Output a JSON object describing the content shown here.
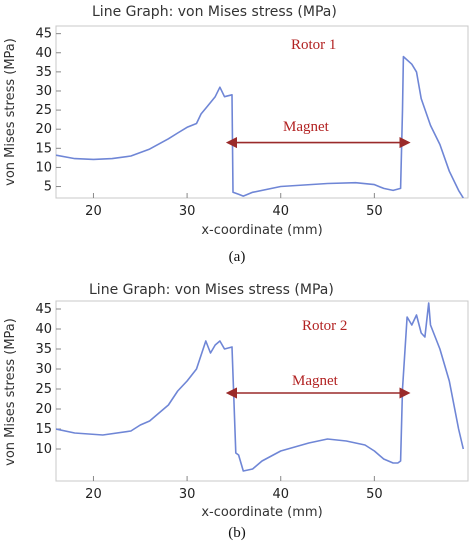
{
  "chart_data": [
    {
      "type": "line",
      "title": "Line Graph: von Mises stress (MPa)",
      "xlabel": "x-coordinate (mm)",
      "ylabel": "von Mises stress (MPa)",
      "xlim": [
        16,
        60
      ],
      "ylim": [
        2,
        47
      ],
      "xticks": [
        20,
        30,
        40,
        50
      ],
      "yticks": [
        5,
        10,
        15,
        20,
        25,
        30,
        35,
        40,
        45
      ],
      "annotation_label": "Rotor 1",
      "magnet_label": "Magnet",
      "magnet_range": [
        35,
        53
      ],
      "magnet_y": 16.5,
      "caption": "(a)",
      "grid": false,
      "line_color": "#6f86d6",
      "arrow_color": "#9a2a2a",
      "series": [
        {
          "x": [
            16,
            18,
            20,
            22,
            24,
            26,
            28,
            29,
            30,
            31,
            31.5,
            32,
            33,
            33.5,
            34,
            34.8,
            34.9,
            35.5,
            36,
            37,
            40,
            45,
            48,
            50,
            51,
            52,
            52.8,
            53,
            53.1,
            54,
            54.5,
            55,
            56,
            57,
            58,
            59,
            59.5
          ],
          "y": [
            13.2,
            12.3,
            12.1,
            12.3,
            13.0,
            14.8,
            17.5,
            19.0,
            20.5,
            21.5,
            24.0,
            25.5,
            28.5,
            31.0,
            28.5,
            29.0,
            3.5,
            3.0,
            2.5,
            3.5,
            5.0,
            5.8,
            6.0,
            5.5,
            4.5,
            4.0,
            4.5,
            25.0,
            39.0,
            37.0,
            35.0,
            28.0,
            21.0,
            16.0,
            9.0,
            4.0,
            2.0
          ]
        }
      ]
    },
    {
      "type": "line",
      "title": "Line Graph: von Mises stress (MPa)",
      "xlabel": "x-coordinate (mm)",
      "ylabel": "von Mises stress (MPa)",
      "xlim": [
        16,
        60
      ],
      "ylim": [
        2,
        47
      ],
      "xticks": [
        20,
        30,
        40,
        50
      ],
      "yticks": [
        10,
        15,
        20,
        25,
        30,
        35,
        40,
        45
      ],
      "annotation_label": "Rotor 2",
      "magnet_label": "Magnet",
      "magnet_range": [
        35,
        53
      ],
      "magnet_y": 24,
      "caption": "(b)",
      "grid": false,
      "line_color": "#6f86d6",
      "arrow_color": "#9a2a2a",
      "series": [
        {
          "x": [
            16,
            18,
            21,
            24,
            25,
            26,
            28,
            29,
            30,
            31,
            32,
            32.5,
            33,
            33.5,
            34,
            34.8,
            35.2,
            35.5,
            36,
            37,
            38,
            40,
            43,
            45,
            47,
            49,
            50,
            51,
            52,
            52.5,
            52.8,
            53,
            53.5,
            54,
            54.5,
            55,
            55.4,
            55.8,
            56,
            57,
            58,
            59,
            59.5
          ],
          "y": [
            15.0,
            14.0,
            13.5,
            14.5,
            16.0,
            17.0,
            21.0,
            24.5,
            27.0,
            30.0,
            37.0,
            34.0,
            36.0,
            37.0,
            35.0,
            35.5,
            9.0,
            8.5,
            4.5,
            5.0,
            7.0,
            9.5,
            11.5,
            12.5,
            12.0,
            11.0,
            9.5,
            7.5,
            6.5,
            6.5,
            7.0,
            25.0,
            43.0,
            41.0,
            43.5,
            39.0,
            38.0,
            46.5,
            41.0,
            35.0,
            27.0,
            15.0,
            10.0
          ]
        }
      ]
    }
  ]
}
